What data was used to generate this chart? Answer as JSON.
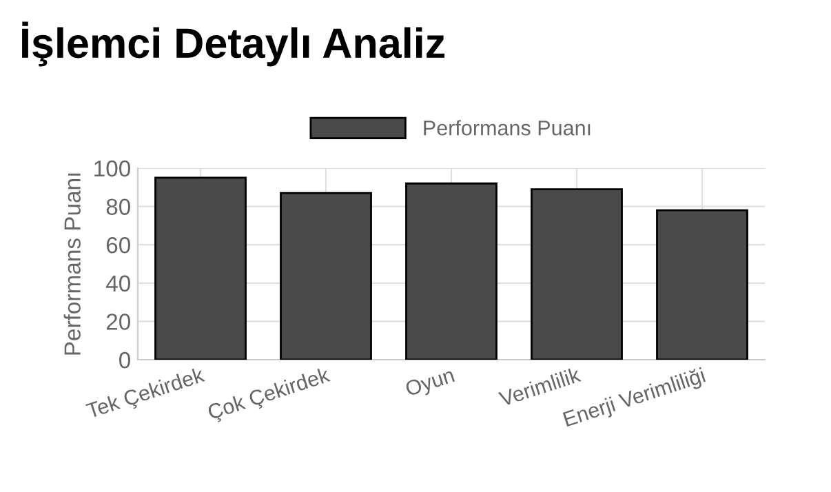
{
  "chart_data": {
    "type": "bar",
    "title": "İşlemci Detaylı Analiz",
    "ylabel": "Performans Puanı",
    "categories": [
      "Tek Çekirdek",
      "Çok Çekirdek",
      "Oyun",
      "Verimlilik",
      "Enerji Verimliliği"
    ],
    "series": [
      {
        "name": "Performans Puanı",
        "color": "#4a4a4a",
        "values": [
          95,
          87,
          92,
          89,
          78
        ]
      }
    ],
    "ylim": [
      0,
      100
    ],
    "yticks": [
      0,
      20,
      40,
      60,
      80,
      100
    ],
    "grid": true,
    "legend": "top"
  }
}
